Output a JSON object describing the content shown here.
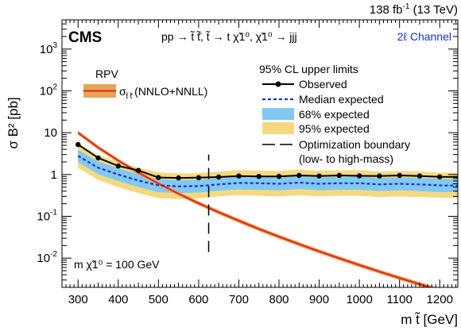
{
  "chart_data": {
    "type": "line",
    "header": {
      "lumi": "138 fb",
      "lumi_exp": "-1",
      "energy": " (13 TeV)"
    },
    "experiment": "CMS",
    "process": "pp → t̃ t̃̄, t̃ → t χ̃1⁰, χ̃1⁰ → jjj",
    "channel": "2ℓ Channel",
    "model": "RPV",
    "annotation": "m χ̃1⁰ = 100 GeV",
    "xlabel": "m t̃ [GeV]",
    "ylabel": "σ B² [pb]",
    "xlim": [
      260,
      1245
    ],
    "ylim": [
      0.002,
      5000
    ],
    "y_scale": "log",
    "x_ticks": [
      300,
      400,
      500,
      600,
      700,
      800,
      900,
      1000,
      1100,
      1200
    ],
    "x_tick_labels": [
      "300",
      "400",
      "500",
      "600",
      "700",
      "800",
      "900",
      "1000",
      "1100",
      "1200"
    ],
    "y_ticks": [
      0.01,
      0.1,
      1,
      10,
      100,
      1000
    ],
    "y_tick_labels": [
      {
        "base": "10",
        "exp": "-2"
      },
      {
        "base": "10",
        "exp": "-1"
      },
      {
        "base": "1",
        "exp": ""
      },
      {
        "base": "10",
        "exp": ""
      },
      {
        "base": "10",
        "exp": "2"
      },
      {
        "base": "10",
        "exp": "3"
      }
    ],
    "legend_header": "95% CL upper limits",
    "legend_position": "top-right",
    "series": [
      {
        "name": "Observed",
        "color": "#000000",
        "style": "solid-markers",
        "x": [
          300,
          350,
          400,
          450,
          500,
          550,
          600,
          650,
          700,
          750,
          800,
          850,
          900,
          950,
          1000,
          1050,
          1100,
          1150,
          1200,
          1245
        ],
        "y": [
          5.2,
          2.5,
          1.6,
          1.25,
          0.85,
          0.83,
          0.84,
          0.87,
          0.92,
          0.9,
          0.9,
          0.95,
          0.92,
          0.95,
          0.93,
          0.92,
          0.95,
          0.92,
          0.88,
          0.87
        ]
      },
      {
        "name": "Median expected",
        "color": "#1a2fd6",
        "style": "dashed",
        "x": [
          300,
          350,
          400,
          450,
          500,
          550,
          600,
          650,
          700,
          750,
          800,
          850,
          900,
          950,
          1000,
          1050,
          1100,
          1150,
          1200,
          1245
        ],
        "y": [
          2.8,
          1.45,
          1.0,
          0.72,
          0.55,
          0.52,
          0.53,
          0.58,
          0.63,
          0.62,
          0.6,
          0.64,
          0.6,
          0.62,
          0.62,
          0.58,
          0.6,
          0.58,
          0.55,
          0.54
        ]
      },
      {
        "name": "68% expected",
        "color": "#82c8f0",
        "style": "band",
        "x": [
          300,
          350,
          400,
          450,
          500,
          550,
          600,
          650,
          700,
          750,
          800,
          850,
          900,
          950,
          1000,
          1050,
          1100,
          1150,
          1200,
          1245
        ],
        "low": [
          2.0,
          1.02,
          0.7,
          0.5,
          0.38,
          0.36,
          0.37,
          0.41,
          0.44,
          0.43,
          0.42,
          0.45,
          0.42,
          0.43,
          0.43,
          0.4,
          0.42,
          0.4,
          0.38,
          0.38
        ],
        "high": [
          3.9,
          2.05,
          1.42,
          1.02,
          0.78,
          0.74,
          0.75,
          0.83,
          0.9,
          0.88,
          0.86,
          0.91,
          0.86,
          0.89,
          0.89,
          0.83,
          0.86,
          0.83,
          0.79,
          0.77
        ]
      },
      {
        "name": "95% expected",
        "color": "#f5d97f",
        "style": "band",
        "x": [
          300,
          350,
          400,
          450,
          500,
          550,
          600,
          650,
          700,
          750,
          800,
          850,
          900,
          950,
          1000,
          1050,
          1100,
          1150,
          1200,
          1245
        ],
        "low": [
          1.45,
          0.74,
          0.5,
          0.36,
          0.27,
          0.26,
          0.27,
          0.3,
          0.32,
          0.31,
          0.3,
          0.32,
          0.3,
          0.31,
          0.31,
          0.29,
          0.3,
          0.29,
          0.28,
          0.27
        ],
        "high": [
          5.6,
          2.9,
          2.0,
          1.45,
          1.12,
          1.06,
          1.08,
          1.18,
          1.28,
          1.25,
          1.22,
          1.3,
          1.22,
          1.26,
          1.26,
          1.18,
          1.22,
          1.18,
          1.12,
          1.1
        ]
      },
      {
        "name": "σ t̃ t̃̄ (NNLO+NNLL)",
        "color": "#e8231c",
        "style": "solid-band",
        "x": [
          300,
          350,
          400,
          450,
          500,
          550,
          600,
          650,
          700,
          750,
          800,
          850,
          900,
          950,
          1000,
          1050,
          1100,
          1150,
          1200
        ],
        "y": [
          10.0,
          4.43,
          2.15,
          1.11,
          0.609,
          0.347,
          0.205,
          0.125,
          0.0783,
          0.05,
          0.0326,
          0.0216,
          0.0145,
          0.00991,
          0.00683,
          0.00476,
          0.00335,
          0.00238,
          0.0017
        ]
      },
      {
        "name": "Optimization boundary",
        "color": "#000000",
        "style": "long-dash",
        "x": [
          625,
          625
        ],
        "y": [
          0.014,
          3.0
        ]
      }
    ],
    "legend_entries": [
      {
        "label": "Observed"
      },
      {
        "label": "Median expected"
      },
      {
        "label": "68% expected"
      },
      {
        "label": "95% expected"
      },
      {
        "label": "Optimization boundary"
      },
      {
        "label": "(low- to high-mass)"
      }
    ],
    "xsec_legend": {
      "prefix": "σ",
      "sub": "t̃ t̃̄",
      "suffix": "(NNLO+NNLL)"
    }
  }
}
